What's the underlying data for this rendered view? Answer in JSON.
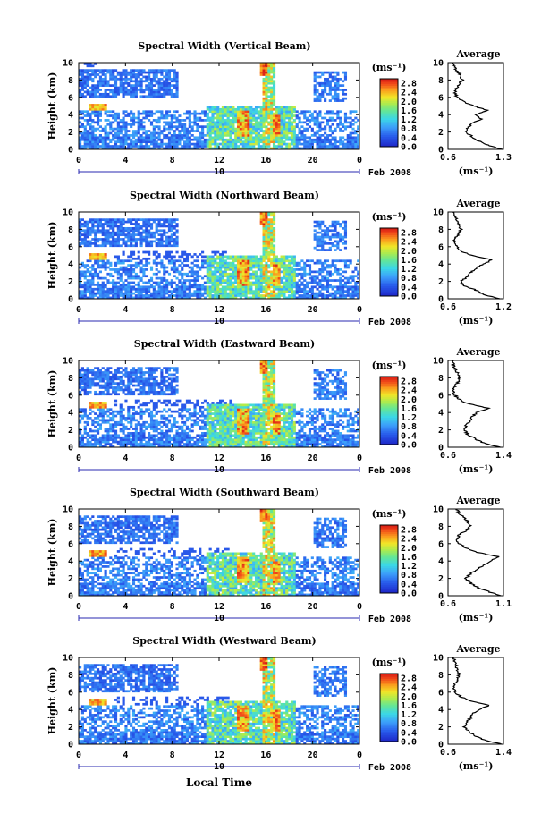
{
  "figure": {
    "xlabel": "Local Time",
    "colorbar_unit": "(ms⁻¹)",
    "date_month": "Feb 2008",
    "date_day": "10",
    "profile_title": "Average",
    "profile_xlabel": "(ms⁻¹)",
    "ylabel": "Height (km)"
  },
  "chart_data": [
    {
      "type": "heatmap",
      "title": "Spectral Width (Vertical Beam)",
      "ylabel": "Height (km)",
      "x_ticks": [
        "0",
        "4",
        "8",
        "12",
        "16",
        "20",
        "0"
      ],
      "xlim": [
        0,
        24
      ],
      "y_ticks": [
        "0",
        "2",
        "4",
        "6",
        "8",
        "10"
      ],
      "ylim": [
        0,
        10
      ],
      "colorbar_ticks": [
        "0.0",
        "0.4",
        "0.8",
        "1.2",
        "1.6",
        "2.0",
        "2.4",
        "2.8"
      ],
      "colorbar_range": [
        0.0,
        3.0
      ],
      "profile": {
        "title": "Average",
        "x_ticks": [
          "0.6",
          "1.3"
        ],
        "xlim": [
          0.6,
          1.3
        ],
        "heights": [
          0,
          0.5,
          1,
          1.5,
          2,
          2.5,
          3,
          3.5,
          4,
          4.5,
          5,
          5.5,
          6,
          6.5,
          7,
          7.5,
          8,
          8.5,
          9,
          9.5,
          10
        ],
        "values": [
          1.28,
          1.1,
          0.98,
          0.9,
          0.82,
          0.85,
          0.9,
          1.02,
          0.95,
          1.1,
          0.92,
          0.8,
          0.72,
          0.68,
          0.7,
          0.74,
          0.78,
          0.76,
          0.72,
          0.68,
          0.66
        ]
      }
    },
    {
      "type": "heatmap",
      "title": "Spectral Width (Northward Beam)",
      "ylabel": "Height (km)",
      "x_ticks": [
        "0",
        "4",
        "8",
        "12",
        "16",
        "20",
        "0"
      ],
      "xlim": [
        0,
        24
      ],
      "y_ticks": [
        "0",
        "2",
        "4",
        "6",
        "8",
        "10"
      ],
      "ylim": [
        0,
        10
      ],
      "colorbar_ticks": [
        "0.0",
        "0.4",
        "0.8",
        "1.2",
        "1.6",
        "2.0",
        "2.4",
        "2.8"
      ],
      "colorbar_range": [
        0.0,
        3.0
      ],
      "profile": {
        "title": "Average",
        "x_ticks": [
          "0.6",
          "1.2"
        ],
        "xlim": [
          0.6,
          1.2
        ],
        "heights": [
          0,
          0.5,
          1,
          1.5,
          2,
          2.5,
          3,
          3.5,
          4,
          4.5,
          5,
          5.5,
          6,
          6.5,
          7,
          7.5,
          8,
          8.5,
          9,
          9.5,
          10
        ],
        "values": [
          1.15,
          0.98,
          0.9,
          0.78,
          0.74,
          0.8,
          0.84,
          0.9,
          0.98,
          1.08,
          0.85,
          0.74,
          0.7,
          0.66,
          0.68,
          0.72,
          0.74,
          0.72,
          0.7,
          0.68,
          0.66
        ]
      }
    },
    {
      "type": "heatmap",
      "title": "Spectral Width (Eastward Beam)",
      "ylabel": "Height (km)",
      "x_ticks": [
        "0",
        "4",
        "8",
        "12",
        "16",
        "20",
        "0"
      ],
      "xlim": [
        0,
        24
      ],
      "y_ticks": [
        "0",
        "2",
        "4",
        "6",
        "8",
        "10"
      ],
      "ylim": [
        0,
        10
      ],
      "colorbar_ticks": [
        "0.0",
        "0.4",
        "0.8",
        "1.2",
        "1.6",
        "2.0",
        "2.4",
        "2.8"
      ],
      "colorbar_range": [
        0.0,
        3.0
      ],
      "profile": {
        "title": "Average",
        "x_ticks": [
          "0.6",
          "1.4"
        ],
        "xlim": [
          0.6,
          1.4
        ],
        "heights": [
          0,
          0.5,
          1,
          1.5,
          2,
          2.5,
          3,
          3.5,
          4,
          4.5,
          5,
          5.5,
          6,
          6.5,
          7,
          7.5,
          8,
          8.5,
          9,
          9.5,
          10
        ],
        "values": [
          1.35,
          1.12,
          0.98,
          0.88,
          0.84,
          0.86,
          0.92,
          0.95,
          1.02,
          1.18,
          0.9,
          0.76,
          0.7,
          0.68,
          0.7,
          0.74,
          0.76,
          0.74,
          0.7,
          0.68,
          0.66
        ]
      }
    },
    {
      "type": "heatmap",
      "title": "Spectral Width (Southward Beam)",
      "ylabel": "Height (km)",
      "x_ticks": [
        "0",
        "4",
        "8",
        "12",
        "16",
        "20",
        "0"
      ],
      "xlim": [
        0,
        24
      ],
      "y_ticks": [
        "0",
        "2",
        "4",
        "6",
        "8",
        "10"
      ],
      "ylim": [
        0,
        10
      ],
      "colorbar_ticks": [
        "0.0",
        "0.4",
        "0.8",
        "1.2",
        "1.6",
        "2.0",
        "2.4",
        "2.8"
      ],
      "colorbar_range": [
        0.0,
        3.0
      ],
      "profile": {
        "title": "Average",
        "x_ticks": [
          "0.6",
          "1.1"
        ],
        "xlim": [
          0.6,
          1.1
        ],
        "heights": [
          0,
          0.5,
          1,
          1.5,
          2,
          2.5,
          3,
          3.5,
          4,
          4.5,
          5,
          5.5,
          6,
          6.5,
          7,
          7.5,
          8,
          8.5,
          9,
          9.5,
          10
        ],
        "values": [
          1.08,
          0.96,
          0.86,
          0.8,
          0.76,
          0.8,
          0.86,
          0.92,
          0.98,
          1.05,
          0.86,
          0.76,
          0.7,
          0.68,
          0.7,
          0.76,
          0.8,
          0.78,
          0.74,
          0.7,
          0.68
        ]
      }
    },
    {
      "type": "heatmap",
      "title": "Spectral Width (Westward Beam)",
      "ylabel": "Height (km)",
      "x_ticks": [
        "0",
        "4",
        "8",
        "12",
        "16",
        "20",
        "0"
      ],
      "xlim": [
        0,
        24
      ],
      "y_ticks": [
        "0",
        "2",
        "4",
        "6",
        "8",
        "10"
      ],
      "ylim": [
        0,
        10
      ],
      "colorbar_ticks": [
        "0.0",
        "0.4",
        "0.8",
        "1.2",
        "1.6",
        "2.0",
        "2.4",
        "2.8"
      ],
      "colorbar_range": [
        0.0,
        3.0
      ],
      "profile": {
        "title": "Average",
        "x_ticks": [
          "0.6",
          "1.4"
        ],
        "xlim": [
          0.6,
          1.4
        ],
        "heights": [
          0,
          0.5,
          1,
          1.5,
          2,
          2.5,
          3,
          3.5,
          4,
          4.5,
          5,
          5.5,
          6,
          6.5,
          7,
          7.5,
          8,
          8.5,
          9,
          9.5,
          10
        ],
        "values": [
          1.38,
          1.12,
          0.98,
          0.9,
          0.84,
          0.86,
          0.92,
          0.96,
          1.04,
          1.2,
          0.92,
          0.78,
          0.7,
          0.68,
          0.7,
          0.74,
          0.76,
          0.74,
          0.72,
          0.7,
          0.68
        ]
      }
    }
  ]
}
